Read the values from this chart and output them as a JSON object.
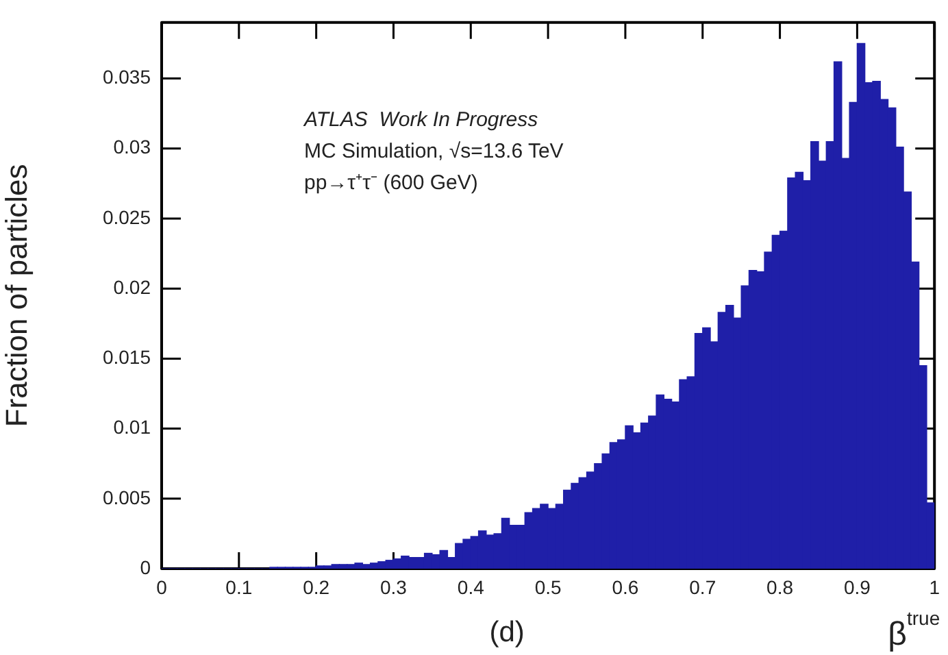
{
  "chart_data": {
    "type": "histogram",
    "xlabel": "β$^{true}$",
    "ylabel": "Fraction of particles",
    "annotations": [
      "ATLAS  Work In Progress",
      "MC Simulation, √s=13.6 TeV",
      "pp→τ⁺τ⁻ (600 GeV)",
      "(d)"
    ],
    "bins": [
      0,
      0.01,
      0.02,
      0.03,
      0.04,
      0.05,
      0.06,
      0.07,
      0.08,
      0.09,
      0.1,
      0.11,
      0.12,
      0.13,
      0.14,
      0.15,
      0.16,
      0.17,
      0.18,
      0.19,
      0.2,
      0.21,
      0.22,
      0.23,
      0.24,
      0.25,
      0.26,
      0.27,
      0.28,
      0.29,
      0.3,
      0.31,
      0.32,
      0.33,
      0.34,
      0.35,
      0.36,
      0.37,
      0.38,
      0.39,
      0.4,
      0.41,
      0.42,
      0.43,
      0.44,
      0.45,
      0.46,
      0.47,
      0.48,
      0.49,
      0.5,
      0.51,
      0.52,
      0.53,
      0.54,
      0.55,
      0.56,
      0.57,
      0.58,
      0.59,
      0.6,
      0.61,
      0.62,
      0.63,
      0.64,
      0.65,
      0.66,
      0.67,
      0.68,
      0.69,
      0.7,
      0.71,
      0.72,
      0.73,
      0.74,
      0.75,
      0.76,
      0.77,
      0.78,
      0.79,
      0.8,
      0.81,
      0.82,
      0.83,
      0.84,
      0.85,
      0.86,
      0.87,
      0.88,
      0.89,
      0.9,
      0.91,
      0.92,
      0.93,
      0.94,
      0.95,
      0.96,
      0.97,
      0.98,
      0.99,
      1
    ],
    "values": [
      0,
      0,
      0,
      0,
      0,
      0,
      0,
      0,
      0,
      0,
      0,
      0,
      0,
      0,
      0.0001,
      0.0001,
      0.0001,
      0.0001,
      0.0001,
      0.0001,
      0.0002,
      0.0002,
      0.0003,
      0.0003,
      0.0003,
      0.0004,
      0.0003,
      0.0004,
      0.0005,
      0.0006,
      0.0007,
      0.0009,
      0.0008,
      0.0008,
      0.0011,
      0.001,
      0.0013,
      0.0008,
      0.0018,
      0.0021,
      0.0023,
      0.0027,
      0.0024,
      0.0025,
      0.0036,
      0.0031,
      0.0031,
      0.004,
      0.0043,
      0.0046,
      0.0043,
      0.0046,
      0.0056,
      0.0061,
      0.0065,
      0.0069,
      0.0075,
      0.0082,
      0.009,
      0.0092,
      0.0102,
      0.0097,
      0.0104,
      0.0109,
      0.0124,
      0.0121,
      0.0119,
      0.0135,
      0.0137,
      0.0168,
      0.0172,
      0.0162,
      0.0183,
      0.0188,
      0.0179,
      0.0202,
      0.0213,
      0.0212,
      0.0226,
      0.0238,
      0.0241,
      0.0279,
      0.0283,
      0.0277,
      0.0305,
      0.0291,
      0.0305,
      0.0362,
      0.0293,
      0.0333,
      0.0375,
      0.0347,
      0.0348,
      0.0335,
      0.0329,
      0.0301,
      0.0269,
      0.0219,
      0.0145,
      0.0047
    ],
    "color": "#1f1fa8",
    "xlim": [
      0,
      1
    ],
    "xticks": [
      0,
      0.1,
      0.2,
      0.3,
      0.4,
      0.5,
      0.6,
      0.7,
      0.8,
      0.9,
      1
    ],
    "ylim": [
      0,
      0.039
    ],
    "yticks": [
      0,
      0.005,
      0.01,
      0.015,
      0.02,
      0.025,
      0.03,
      0.035
    ],
    "grid": false,
    "legend": false
  }
}
